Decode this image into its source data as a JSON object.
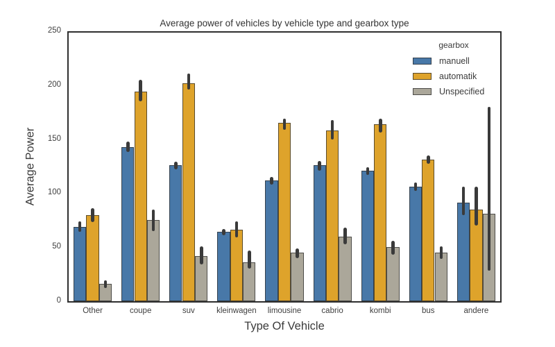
{
  "figure": {
    "title": "Average power of vehicles by vehicle type and gearbox type",
    "xlabel": "Type Of Vehicle",
    "ylabel": "Average Power"
  },
  "legend": {
    "title": "gearbox",
    "entries": [
      "manuell",
      "automatik",
      "Unspecified"
    ]
  },
  "colors": {
    "manuell": "#4878A8",
    "automatik": "#DEA32B",
    "unspecified": "#ABA79A",
    "error_bar": "#3A3A3A",
    "spine": "#2E2E2E",
    "background": "#FFFFFF"
  },
  "chart_data": {
    "type": "bar",
    "title": "Average power of vehicles by vehicle type and gearbox type",
    "xlabel": "Type Of Vehicle",
    "ylabel": "Average Power",
    "ylim": [
      0,
      250
    ],
    "yticks": [
      0,
      50,
      100,
      150,
      200,
      250
    ],
    "grid": false,
    "legend_title": "gearbox",
    "legend_position": "upper right",
    "categories": [
      "Other",
      "coupe",
      "suv",
      "kleinwagen",
      "limousine",
      "cabrio",
      "kombi",
      "bus",
      "andere"
    ],
    "series": [
      {
        "name": "manuell",
        "color": "#4878A8",
        "values": [
          69,
          143,
          126,
          64,
          112,
          126,
          121,
          106,
          91
        ],
        "ci_low": [
          64,
          138,
          122,
          61,
          108,
          121,
          117,
          102,
          80
        ],
        "ci_high": [
          74,
          148,
          129,
          67,
          115,
          130,
          124,
          110,
          106
        ]
      },
      {
        "name": "automatik",
        "color": "#DEA32B",
        "values": [
          80,
          194,
          202,
          66,
          165,
          158,
          164,
          131,
          85
        ],
        "ci_low": [
          73,
          185,
          196,
          59,
          159,
          150,
          156,
          127,
          70
        ],
        "ci_high": [
          86,
          205,
          211,
          74,
          169,
          168,
          169,
          135,
          106
        ]
      },
      {
        "name": "Unspecified",
        "color": "#ABA79A",
        "values": [
          16,
          75,
          42,
          36,
          45,
          60,
          50,
          45,
          81
        ],
        "ci_low": [
          12,
          65,
          34,
          30,
          40,
          53,
          43,
          39,
          28
        ],
        "ci_high": [
          19,
          85,
          51,
          47,
          49,
          68,
          56,
          51,
          180
        ]
      }
    ]
  }
}
